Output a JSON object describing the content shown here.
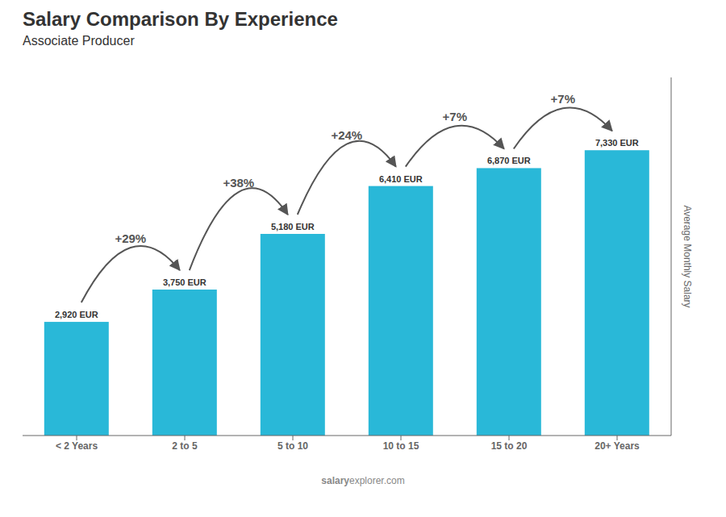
{
  "chart_data": {
    "type": "bar",
    "title": "Salary Comparison By Experience",
    "subtitle": "Associate Producer",
    "y_label": "Average Monthly Salary",
    "watermark": [
      "salary",
      "explorer.com"
    ],
    "categories": [
      "< 2 Years",
      "2 to 5",
      "5 to 10",
      "10 to 15",
      "15 to 20",
      "20+ Years"
    ],
    "values": [
      2920,
      3750,
      5180,
      6410,
      6870,
      7330
    ],
    "value_labels": [
      "2,920 EUR",
      "3,750 EUR",
      "5,180 EUR",
      "6,410 EUR",
      "6,870 EUR",
      "7,330 EUR"
    ],
    "data_labels": true,
    "color": "#29b8d8",
    "ylim": [
      0,
      9200
    ],
    "grid": false,
    "tick_labels": "x",
    "annotations": [
      {
        "text": "+29%",
        "from": "< 2 Years",
        "to": "2 to 5"
      },
      {
        "text": "+38%",
        "from": "2 to 5",
        "to": "5 to 10"
      },
      {
        "text": "+24%",
        "from": "5 to 10",
        "to": "10 to 15"
      },
      {
        "text": "+7%",
        "from": "10 to 15",
        "to": "15 to 20"
      },
      {
        "text": "+7%",
        "from": "15 to 20",
        "to": "20+ Years"
      }
    ]
  }
}
